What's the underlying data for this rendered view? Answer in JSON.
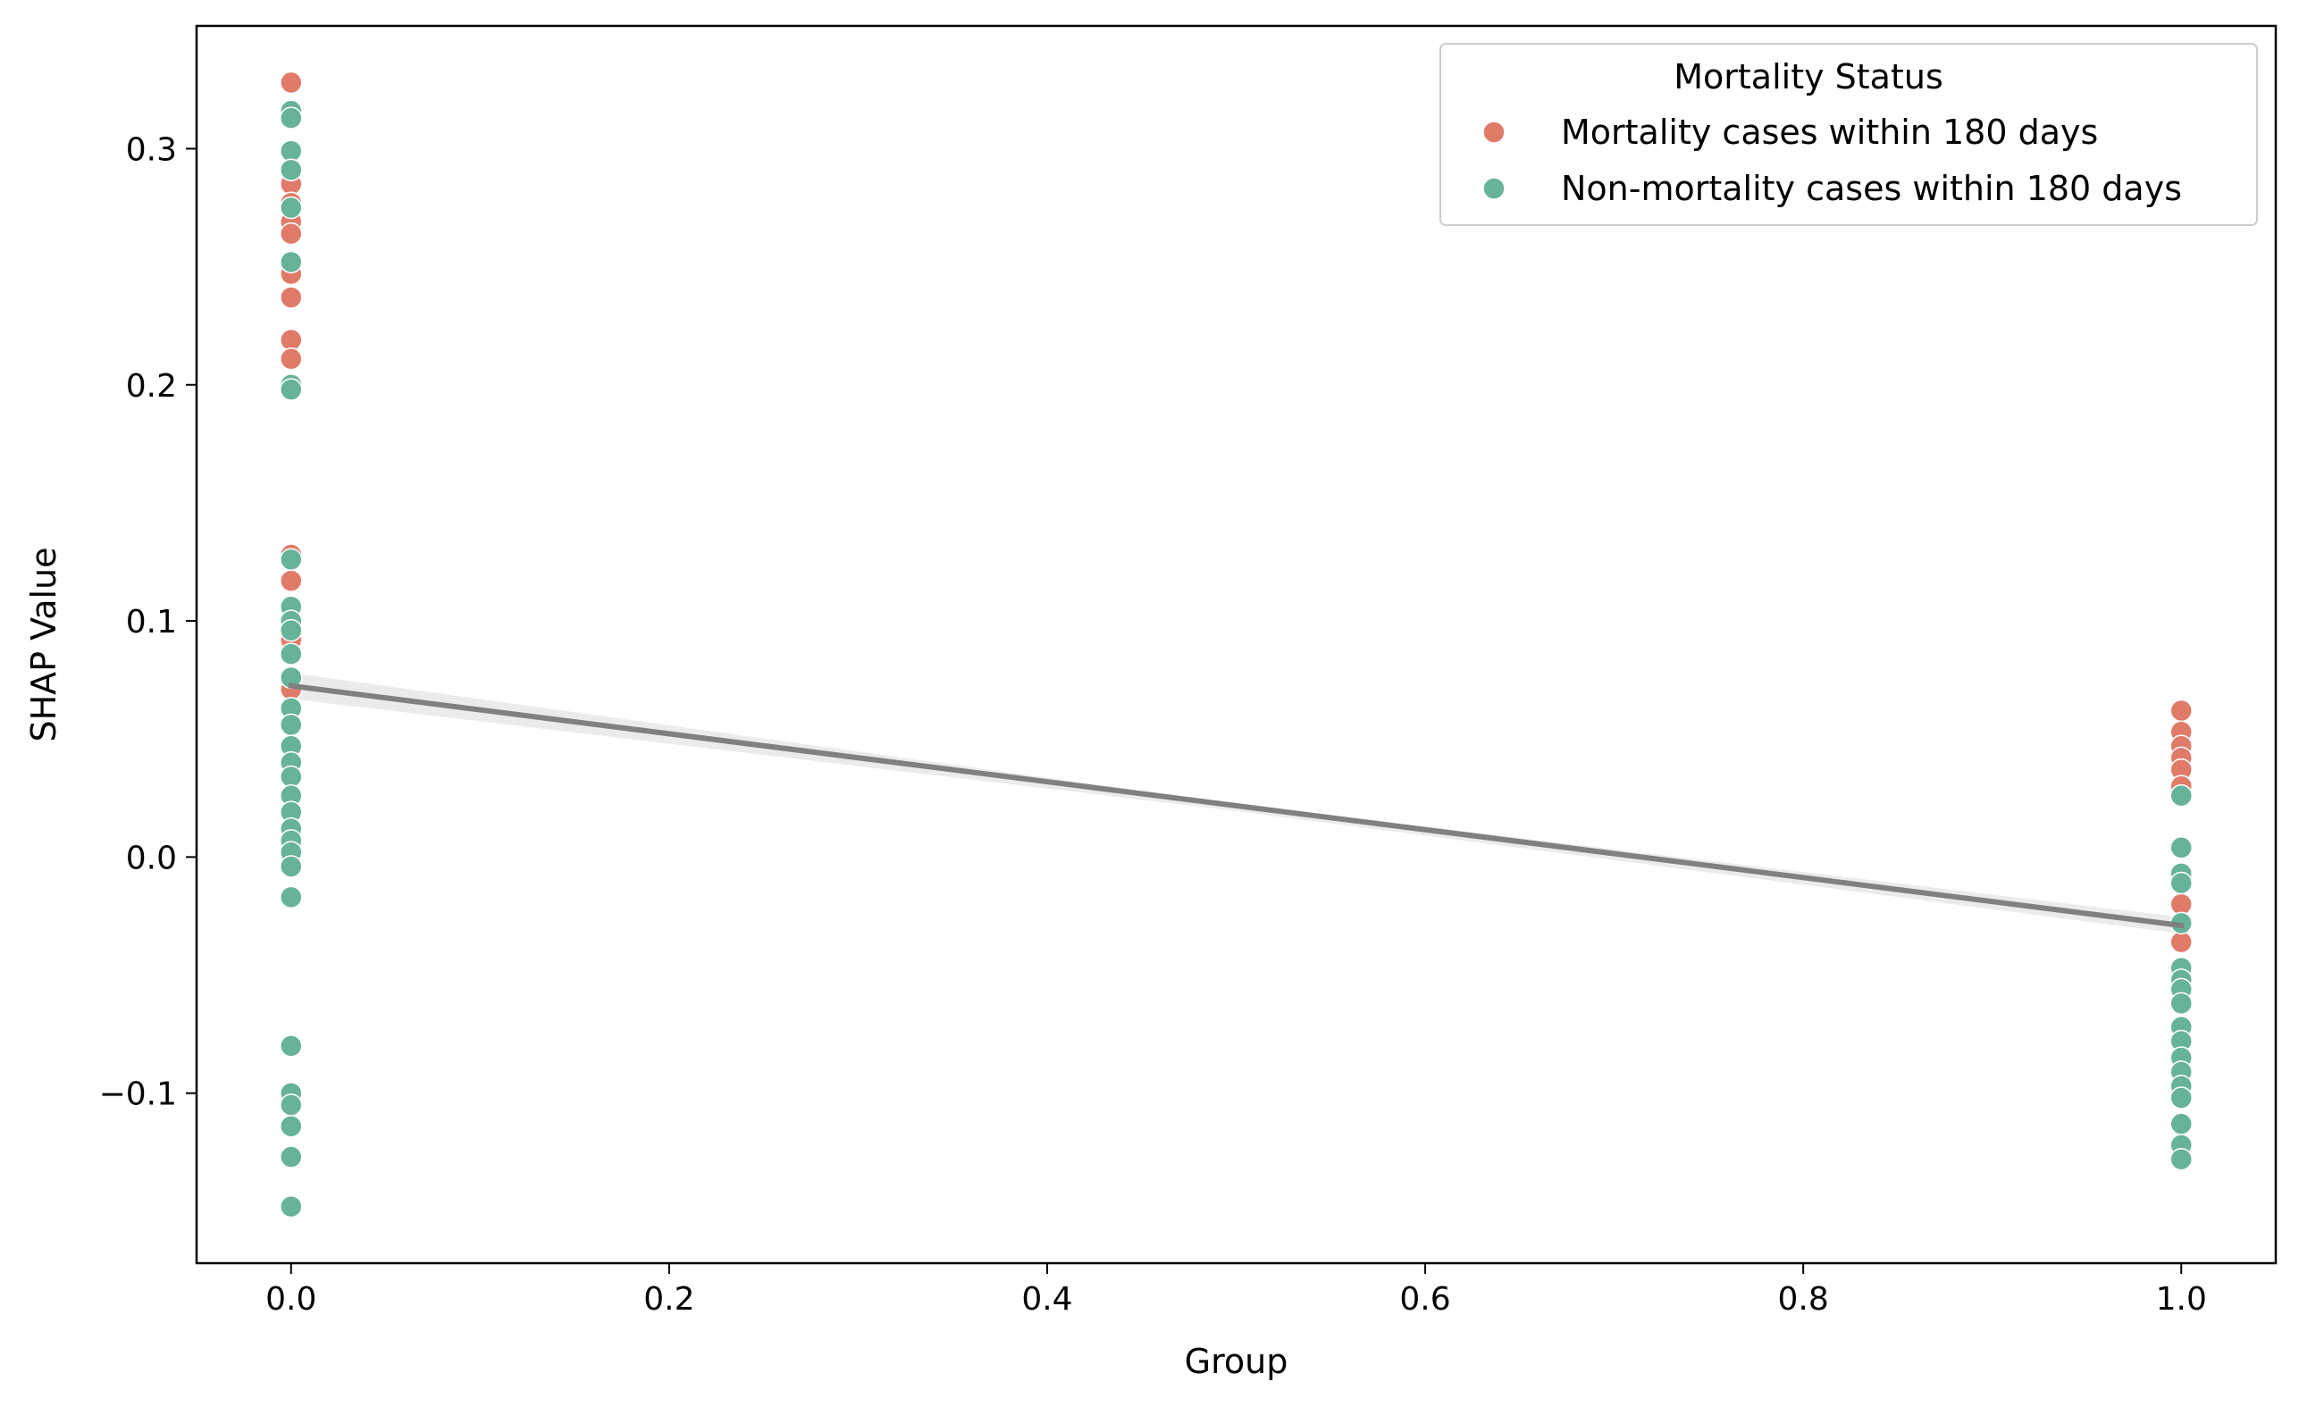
{
  "chart_data": {
    "type": "scatter",
    "title": "",
    "xlabel": "Group",
    "ylabel": "SHAP Value",
    "xlim": [
      -0.05,
      1.05
    ],
    "ylim": [
      -0.172,
      0.352
    ],
    "xticks": [
      {
        "value": 0.0,
        "label": "0.0"
      },
      {
        "value": 0.2,
        "label": "0.2"
      },
      {
        "value": 0.4,
        "label": "0.4"
      },
      {
        "value": 0.6,
        "label": "0.6"
      },
      {
        "value": 0.8,
        "label": "0.8"
      },
      {
        "value": 1.0,
        "label": "1.0"
      }
    ],
    "yticks": [
      {
        "value": -0.1,
        "label": "−0.1"
      },
      {
        "value": 0.0,
        "label": "0.0"
      },
      {
        "value": 0.1,
        "label": "0.1"
      },
      {
        "value": 0.2,
        "label": "0.2"
      },
      {
        "value": 0.3,
        "label": "0.3"
      }
    ],
    "grid": false,
    "legend": {
      "title": "Mortality Status",
      "placement": "top-right"
    },
    "series": [
      {
        "name": "Mortality cases within 180 days",
        "color": "#e07b6a",
        "points": [
          [
            0,
            0.328
          ],
          [
            0,
            0.285
          ],
          [
            0,
            0.277
          ],
          [
            0,
            0.269
          ],
          [
            0,
            0.264
          ],
          [
            0,
            0.247
          ],
          [
            0,
            0.237
          ],
          [
            0,
            0.219
          ],
          [
            0,
            0.211
          ],
          [
            0,
            0.128
          ],
          [
            0,
            0.117
          ],
          [
            0,
            0.092
          ],
          [
            0,
            0.071
          ],
          [
            1,
            0.062
          ],
          [
            1,
            0.053
          ],
          [
            1,
            0.047
          ],
          [
            1,
            0.042
          ],
          [
            1,
            0.037
          ],
          [
            1,
            0.03
          ],
          [
            1,
            -0.02
          ],
          [
            1,
            -0.036
          ]
        ]
      },
      {
        "name": "Non-mortality cases within 180 days",
        "color": "#66b39a",
        "points": [
          [
            0,
            0.316
          ],
          [
            0,
            0.313
          ],
          [
            0,
            0.299
          ],
          [
            0,
            0.291
          ],
          [
            0,
            0.275
          ],
          [
            0,
            0.252
          ],
          [
            0,
            0.2
          ],
          [
            0,
            0.198
          ],
          [
            0,
            0.126
          ],
          [
            0,
            0.106
          ],
          [
            0,
            0.1
          ],
          [
            0,
            0.096
          ],
          [
            0,
            0.086
          ],
          [
            0,
            0.076
          ],
          [
            0,
            0.063
          ],
          [
            0,
            0.056
          ],
          [
            0,
            0.047
          ],
          [
            0,
            0.04
          ],
          [
            0,
            0.034
          ],
          [
            0,
            0.026
          ],
          [
            0,
            0.019
          ],
          [
            0,
            0.012
          ],
          [
            0,
            0.007
          ],
          [
            0,
            0.002
          ],
          [
            0,
            -0.004
          ],
          [
            0,
            -0.017
          ],
          [
            0,
            -0.08
          ],
          [
            0,
            -0.1
          ],
          [
            0,
            -0.105
          ],
          [
            0,
            -0.114
          ],
          [
            0,
            -0.127
          ],
          [
            0,
            -0.148
          ],
          [
            1,
            0.026
          ],
          [
            1,
            0.004
          ],
          [
            1,
            -0.007
          ],
          [
            1,
            -0.011
          ],
          [
            1,
            -0.028
          ],
          [
            1,
            -0.047
          ],
          [
            1,
            -0.052
          ],
          [
            1,
            -0.056
          ],
          [
            1,
            -0.062
          ],
          [
            1,
            -0.072
          ],
          [
            1,
            -0.078
          ],
          [
            1,
            -0.085
          ],
          [
            1,
            -0.091
          ],
          [
            1,
            -0.097
          ],
          [
            1,
            -0.102
          ],
          [
            1,
            -0.113
          ],
          [
            1,
            -0.122
          ],
          [
            1,
            -0.128
          ]
        ]
      }
    ],
    "regression": {
      "color": "#808080",
      "ci_color": "#e6e6e6",
      "line": [
        [
          0,
          0.0725
        ],
        [
          1,
          -0.029
        ]
      ],
      "ci_lower": [
        [
          0,
          0.067
        ],
        [
          0.5,
          0.0195
        ],
        [
          1,
          -0.0325
        ]
      ],
      "ci_upper": [
        [
          0,
          0.078
        ],
        [
          0.5,
          0.0225
        ],
        [
          1,
          -0.0255
        ]
      ]
    }
  }
}
